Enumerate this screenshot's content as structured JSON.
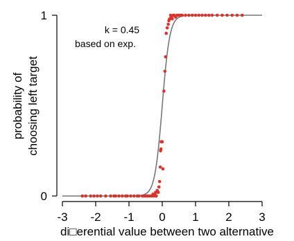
{
  "chart_data": {
    "type": "scatter",
    "title": "",
    "xlabel": "di□erential value between two alternative",
    "ylabel_lines": [
      "probability of",
      "choosing left target"
    ],
    "xlim": [
      -3,
      3
    ],
    "ylim": [
      0,
      1
    ],
    "xticks": [
      "-3",
      "-2",
      "-1",
      "0",
      "1",
      "2",
      "3"
    ],
    "yticks": [
      "0",
      "1"
    ],
    "grid": false,
    "annotation_lines": [
      "k = 0.45",
      "based on exp."
    ],
    "colors": {
      "points": "#e0302a",
      "curve": "#777777",
      "axes": "#000000"
    },
    "series": [
      {
        "type": "scatter",
        "x": [
          -2.4,
          -2.3,
          -2.15,
          -2.05,
          -1.95,
          -1.85,
          -1.7,
          -1.55,
          -1.45,
          -1.4,
          -1.3,
          -1.2,
          -1.1,
          -1.05,
          -0.95,
          -0.85,
          -0.75,
          -0.7,
          -0.6,
          -0.55,
          -0.5,
          -0.45,
          -0.4,
          -0.35,
          -0.3,
          -0.28,
          -0.25,
          -0.22,
          -0.2,
          -0.18,
          -0.15,
          -0.12,
          -0.1,
          -0.08,
          -0.06,
          -0.05,
          -0.04,
          -0.03,
          0.0,
          0.02,
          0.05,
          0.08,
          0.1,
          0.12,
          0.15,
          0.18,
          0.2,
          0.22,
          0.25,
          0.28,
          0.3,
          0.33,
          0.36,
          0.4,
          0.45,
          0.5,
          0.55,
          0.6,
          0.7,
          0.8,
          0.9,
          1.0,
          1.1,
          1.2,
          1.3,
          1.4,
          1.5,
          1.65,
          1.8,
          1.95,
          2.1,
          2.25,
          2.4
        ],
        "y": [
          0.0,
          0.0,
          0.0,
          0.0,
          0.0,
          0.0,
          0.0,
          0.0,
          0.0,
          0.0,
          0.0,
          0.0,
          0.0,
          0.0,
          0.0,
          0.0,
          0.0,
          0.0,
          0.0,
          0.0,
          0.0,
          0.0,
          0.0,
          0.0,
          0.0,
          0.01,
          0.0,
          0.01,
          0.02,
          0.0,
          0.03,
          0.02,
          0.05,
          0.08,
          0.16,
          0.25,
          0.26,
          0.3,
          0.3,
          0.15,
          0.58,
          0.69,
          0.77,
          0.9,
          0.93,
          0.95,
          0.97,
          0.98,
          1.0,
          0.99,
          0.98,
          1.0,
          1.0,
          0.99,
          1.0,
          1.0,
          1.0,
          1.0,
          1.0,
          1.0,
          1.0,
          1.0,
          1.0,
          1.0,
          1.0,
          1.0,
          1.0,
          1.0,
          1.0,
          1.0,
          1.0,
          1.0,
          1.0
        ]
      },
      {
        "type": "line",
        "function": "logistic",
        "k": 0.45,
        "note": "fitted curve"
      }
    ]
  }
}
